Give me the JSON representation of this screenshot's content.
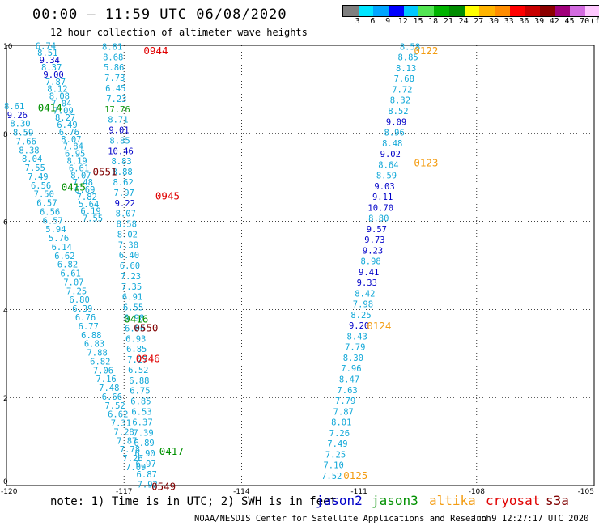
{
  "title": "00:00 — 11:59 UTC 06/08/2020",
  "subtitle": "12 hour collection of altimeter wave heights",
  "legend": {
    "colors": [
      "#7f7f7f",
      "#00e5ff",
      "#00a5ff",
      "#0000ff",
      "#00c8ff",
      "#52e552",
      "#00b400",
      "#008c00",
      "#ffff00",
      "#ffb400",
      "#ff8c00",
      "#ff0000",
      "#c80000",
      "#8b0000",
      "#a0007a",
      "#d36be0",
      "#ffc8ff",
      "#000000"
    ],
    "ticks": [
      "3",
      "6",
      "9",
      "12",
      "15",
      "18",
      "21",
      "24",
      "27",
      "30",
      "33",
      "36",
      "39",
      "42",
      "45",
      "70",
      "(ft)"
    ]
  },
  "axes": {
    "x_ticks": [
      "-120",
      "-117",
      "-114",
      "-111",
      "-108",
      "-105"
    ],
    "y_ticks": [
      "0",
      "2",
      "4",
      "6",
      "8",
      "10"
    ]
  },
  "satellite_colors": {
    "jason2": "#0000c8",
    "jason3": "#009000",
    "altika": "#f39c12",
    "cryosat": "#e00000",
    "s3a": "#800000",
    "other": "#12a8d8"
  },
  "passes": [
    {
      "time": "0944",
      "sat": "cryosat",
      "label_lat": 9.8,
      "label_lon": -116.5
    },
    {
      "time": "0122",
      "sat": "altika",
      "label_lat": 9.8,
      "label_lon": -109.6
    },
    {
      "time": "0414",
      "sat": "jason3",
      "label_lat": 8.5,
      "label_lon": -119.2
    },
    {
      "time": "0123",
      "sat": "altika",
      "label_lat": 7.25,
      "label_lon": -109.6
    },
    {
      "time": "0551",
      "sat": "s3a",
      "label_lat": 7.05,
      "label_lon": -117.8
    },
    {
      "time": "0415",
      "sat": "jason3",
      "label_lat": 6.7,
      "label_lon": -118.6
    },
    {
      "time": "0945",
      "sat": "cryosat",
      "label_lat": 6.5,
      "label_lon": -116.2
    },
    {
      "time": "0416",
      "sat": "jason3",
      "label_lat": 3.7,
      "label_lon": -117.0
    },
    {
      "time": "0550",
      "sat": "s3a",
      "label_lat": 3.5,
      "label_lon": -116.75
    },
    {
      "time": "0124",
      "sat": "altika",
      "label_lat": 3.55,
      "label_lon": -110.8
    },
    {
      "time": "0946",
      "sat": "cryosat",
      "label_lat": 2.8,
      "label_lon": -116.7
    },
    {
      "time": "0417",
      "sat": "jason3",
      "label_lat": 0.7,
      "label_lon": -116.1
    },
    {
      "time": "0125",
      "sat": "altika",
      "label_lat": 0.15,
      "label_lon": -111.4
    },
    {
      "time": "0549",
      "sat": "s3a",
      "label_lat": -0.1,
      "label_lon": -116.3
    }
  ],
  "tracks": [
    {
      "sat": "other",
      "lon_top": -119.0,
      "lat_top": 9.92,
      "lon_bot": -117.8,
      "lat_bot": 6.0,
      "values": [
        "6.74",
        "8.51",
        "9.34",
        "8.37",
        "9.00",
        "7.87",
        "8.12",
        "8.08",
        "7.04",
        "7.09",
        "8.27",
        "6.49",
        "6.76",
        "8.07",
        "7.84",
        "6.95",
        "8.19",
        "6.61",
        "8.07",
        "7.48",
        "6.69",
        "7.82",
        "5.64",
        "6.19",
        "7.55"
      ]
    },
    {
      "sat": "other",
      "lon_top": -119.8,
      "lat_top": 8.55,
      "lon_bot": -116.7,
      "lat_bot": 0.35,
      "values": [
        "8.61",
        "9.26",
        "8.30",
        "8.59",
        "7.66",
        "8.38",
        "8.04",
        "7.55",
        "7.49",
        "6.56",
        "7.50",
        "6.57",
        "6.56",
        "6.57",
        "5.94",
        "5.76",
        "6.14",
        "6.62",
        "6.82",
        "6.61",
        "7.07",
        "7.25",
        "6.80",
        "6.39",
        "6.76",
        "6.77",
        "6.88",
        "6.83",
        "7.88",
        "6.82",
        "7.06",
        "7.16",
        "7.48",
        "6.66",
        "7.52",
        "6.62",
        "7.31",
        "7.28",
        "7.87",
        "7.78",
        "7.26",
        "7.09"
      ]
    },
    {
      "sat": "other",
      "lon_top": -117.3,
      "lat_top": 9.9,
      "lon_bot": -116.4,
      "lat_bot": -0.05,
      "values": [
        "8.81",
        "8.68",
        "5.86",
        "7.73",
        "6.45",
        "7.23",
        "17.76",
        "8.71",
        "9.01",
        "8.85",
        "10.46",
        "8.83",
        "8.88",
        "8.62",
        "7.97",
        "9.22",
        "8.07",
        "8.58",
        "8.02",
        "7.30",
        "6.40",
        "6.60",
        "7.23",
        "7.35",
        "6.91",
        "6.55",
        "6.98",
        "6.06",
        "6.93",
        "6.85",
        "7.27",
        "6.52",
        "6.88",
        "6.75",
        "6.85",
        "6.53",
        "6.37",
        "7.39",
        "6.89",
        "6.90",
        "6.97",
        "6.87",
        "7.92"
      ]
    },
    {
      "sat": "other",
      "lon_top": -109.7,
      "lat_top": 9.9,
      "lon_bot": -111.7,
      "lat_bot": 0.15,
      "values": [
        "8.58",
        "8.85",
        "8.13",
        "7.68",
        "7.72",
        "8.32",
        "8.52",
        "9.09",
        "8.96",
        "8.48",
        "9.02",
        "8.64",
        "8.59",
        "9.03",
        "9.11",
        "10.70",
        "8.80",
        "9.57",
        "9.73",
        "9.23",
        "8.98",
        "9.41",
        "9.33",
        "8.42",
        "7.98",
        "8.25",
        "9.20",
        "8.43",
        "7.79",
        "8.30",
        "7.96",
        "8.47",
        "7.63",
        "7.79",
        "7.87",
        "8.01",
        "7.26",
        "7.49",
        "7.25",
        "7.10",
        "7.52"
      ]
    }
  ],
  "note": "note: 1) Time is in UTC; 2) SWH is in feet",
  "satellites": [
    "jason2",
    "jason3",
    "altika",
    "cryosat",
    "s3a"
  ],
  "credit": "NOAA/NESDIS Center for Satellite Applications and Research",
  "generated": "Jun  9 12:27:17 UTC 2020"
}
